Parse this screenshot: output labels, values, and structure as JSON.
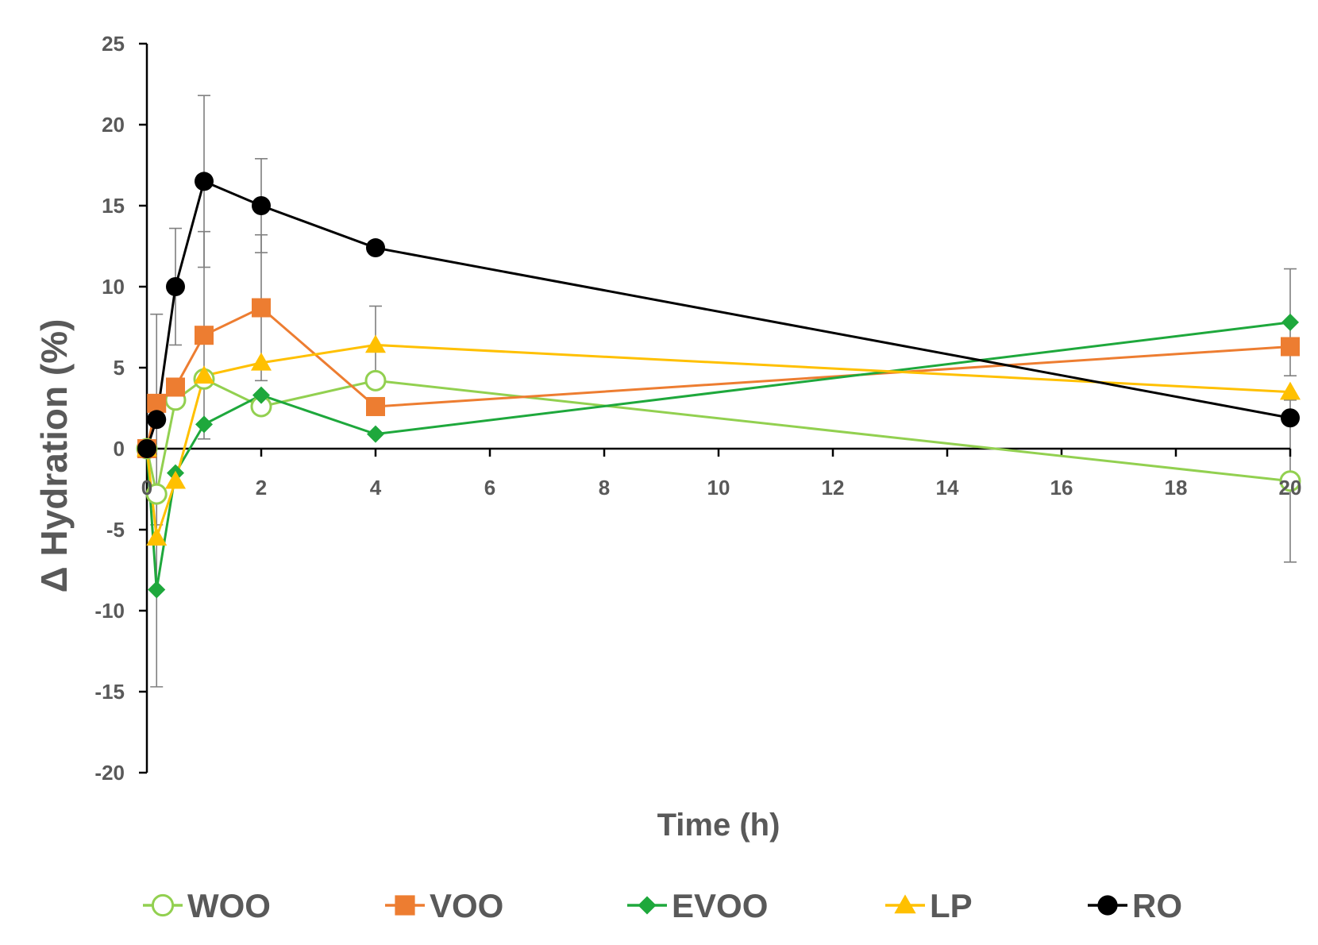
{
  "chart_data": {
    "type": "line",
    "xlabel": "Time (h)",
    "ylabel": "Δ Hydration (%)",
    "xlim": [
      0,
      20
    ],
    "ylim": [
      -20,
      25
    ],
    "x_ticks": [
      "0",
      "2",
      "4",
      "6",
      "8",
      "10",
      "12",
      "14",
      "16",
      "18",
      "20"
    ],
    "y_ticks": [
      "25",
      "20",
      "15",
      "10",
      "5",
      "0",
      "-5",
      "-10",
      "-15",
      "-20"
    ],
    "grid": false,
    "legend_position": "bottom",
    "series": [
      {
        "name": "WOO",
        "color": "#92D050",
        "marker": "open-circle",
        "x": [
          0,
          0.17,
          0.5,
          1,
          2,
          4,
          20
        ],
        "y": [
          0,
          -2.8,
          3,
          4.3,
          2.6,
          4.2,
          -2.0
        ],
        "err": [
          0,
          0,
          0,
          0,
          0,
          0,
          5.0
        ]
      },
      {
        "name": "VOO",
        "color": "#ED7D31",
        "marker": "square",
        "x": [
          0,
          0.17,
          0.5,
          1,
          2,
          4,
          20
        ],
        "y": [
          0,
          2.8,
          3.8,
          7.0,
          8.7,
          2.6,
          6.3
        ],
        "err": [
          0,
          0,
          0,
          6.4,
          4.5,
          0,
          0
        ]
      },
      {
        "name": "EVOO",
        "color": "#1EA83C",
        "marker": "diamond",
        "x": [
          0,
          0.17,
          0.5,
          1,
          2,
          4,
          20
        ],
        "y": [
          0,
          -8.7,
          -1.5,
          1.5,
          3.3,
          0.9,
          7.8
        ],
        "err": [
          0,
          6.0,
          0,
          0,
          0,
          0,
          3.3
        ]
      },
      {
        "name": "LP",
        "color": "#FFC000",
        "marker": "triangle",
        "x": [
          0,
          0.17,
          0.5,
          1,
          2,
          4,
          20
        ],
        "y": [
          0,
          -5.5,
          -2.0,
          4.5,
          5.3,
          6.4,
          3.5
        ],
        "err": [
          0,
          0,
          0,
          0,
          0,
          2.4,
          0
        ]
      },
      {
        "name": "RO",
        "color": "#000000",
        "marker": "circle",
        "x": [
          0,
          0.17,
          0.5,
          1,
          2,
          4,
          20
        ],
        "y": [
          0,
          1.8,
          10.0,
          16.5,
          15.0,
          12.4,
          1.9
        ],
        "err": [
          0,
          6.5,
          3.6,
          5.3,
          2.9,
          0,
          0
        ]
      }
    ]
  }
}
